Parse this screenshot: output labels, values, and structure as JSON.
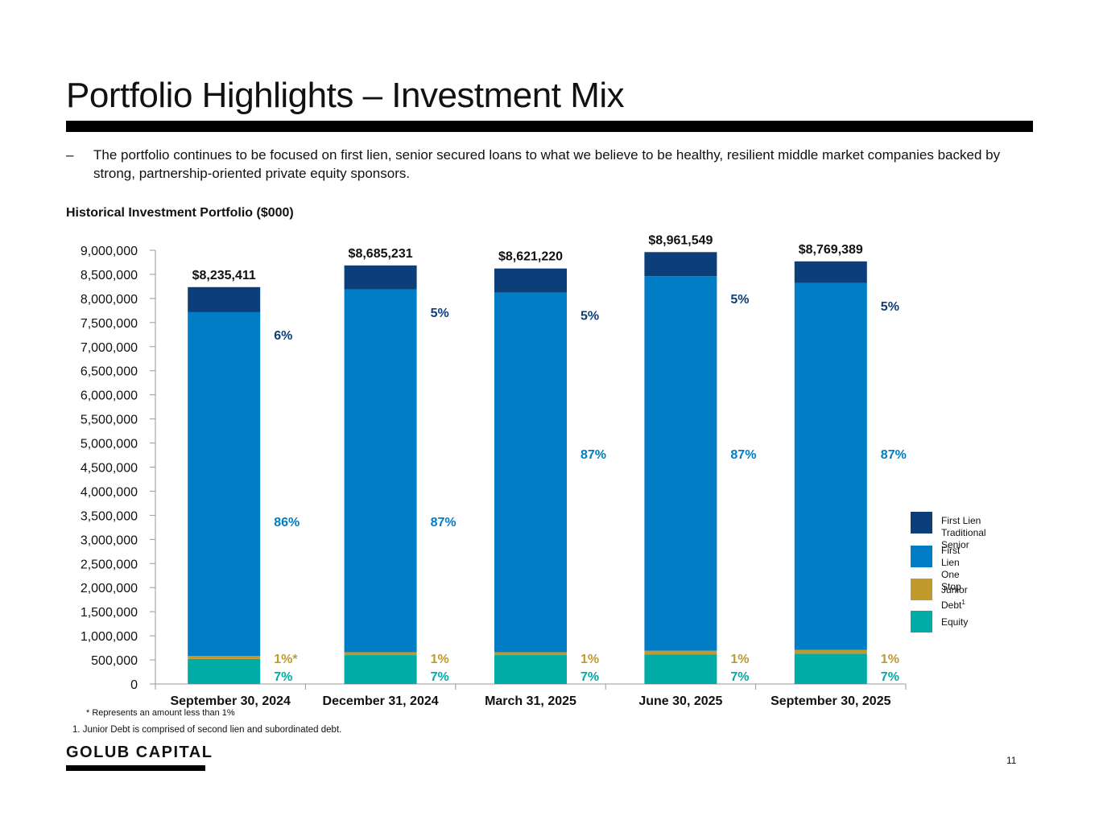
{
  "page": {
    "title": "Portfolio Highlights – Investment Mix",
    "bullet_dash": "–",
    "bullet_text": "The portfolio continues to be focused on first lien, senior secured loans to what we believe to be healthy, resilient middle market companies backed by strong, partnership-oriented private equity sponsors.",
    "chart_heading": "Historical Investment Portfolio ($000)",
    "footnote_star": "* Represents an amount less than 1%",
    "footnote_1": "1.  Junior Debt is comprised of second lien and subordinated debt.",
    "logo": "GOLUB CAPITAL",
    "page_number": "11"
  },
  "legend": [
    {
      "label": "First Lien\nTraditional Senior",
      "color": "#0c3e7a"
    },
    {
      "label": "First Lien\nOne Stop",
      "color": "#007dc5"
    },
    {
      "label": "Junior Debt",
      "sup": "1",
      "color": "#c19a2e"
    },
    {
      "label": "Equity",
      "color": "#00aca5"
    }
  ],
  "chart_data": {
    "type": "bar",
    "stacked": true,
    "title": "Historical Investment Portfolio ($000)",
    "xlabel": "",
    "ylabel": "",
    "ylim": [
      0,
      9000000
    ],
    "ytick_step": 500000,
    "categories": [
      "September 30, 2024",
      "December 31, 2024",
      "March 31, 2025",
      "June 30, 2025",
      "September 30, 2025"
    ],
    "totals": [
      8235411,
      8685231,
      8621220,
      8961549,
      8769389
    ],
    "total_labels": [
      "$8,235,411",
      "$8,685,231",
      "$8,621,220",
      "$8,961,549",
      "$8,769,389"
    ],
    "series": [
      {
        "name": "Equity",
        "color": "#00aca5",
        "values": [
          520000,
          600000,
          600000,
          610000,
          630000
        ],
        "labels": [
          "7%",
          "7%",
          "7%",
          "7%",
          "7%"
        ]
      },
      {
        "name": "Junior Debt",
        "color": "#c19a2e",
        "values": [
          60000,
          60000,
          60000,
          80000,
          80000
        ],
        "labels": [
          "1%*",
          "1%",
          "1%",
          "1%",
          "1%"
        ]
      },
      {
        "name": "First Lien One Stop",
        "color": "#007dc5",
        "values": [
          7135411,
          7525231,
          7461220,
          7771549,
          7609389
        ],
        "labels": [
          "86%",
          "87%",
          "87%",
          "87%",
          "87%"
        ]
      },
      {
        "name": "First Lien Traditional Senior",
        "color": "#0c3e7a",
        "values": [
          520000,
          500000,
          500000,
          500000,
          450000
        ],
        "labels": [
          "6%",
          "5%",
          "5%",
          "5%",
          "5%"
        ]
      }
    ]
  }
}
